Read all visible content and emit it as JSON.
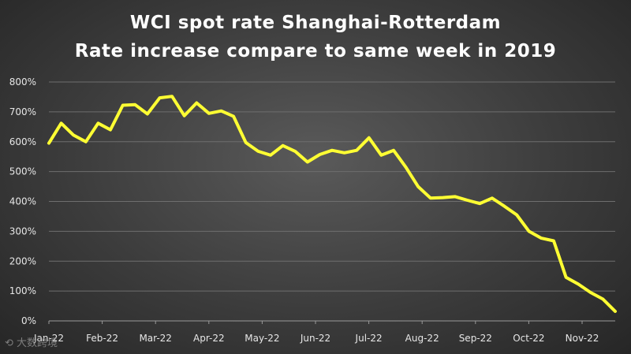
{
  "chart_data": {
    "type": "line",
    "title": "WCI spot rate Shanghai-Rotterdam",
    "subtitle": "Rate increase compare to same week in 2019",
    "xlabel": "",
    "ylabel": "",
    "ylim": [
      0,
      800
    ],
    "y_ticks": [
      "0%",
      "100%",
      "200%",
      "300%",
      "400%",
      "500%",
      "600%",
      "700%",
      "800%"
    ],
    "x_tick_labels": [
      "Jan-22",
      "Feb-22",
      "Mar-22",
      "Apr-22",
      "May-22",
      "Jun-22",
      "Jul-22",
      "Aug-22",
      "Sep-22",
      "Oct-22",
      "Nov-22"
    ],
    "grid": true,
    "line_color": "#ffff33",
    "series": [
      {
        "values": [
          595,
          662,
          622,
          600,
          662,
          640,
          722,
          724,
          693,
          747,
          752,
          687,
          730,
          695,
          703,
          685,
          597,
          568,
          555,
          587,
          568,
          532,
          557,
          571,
          563,
          571,
          613,
          555,
          571,
          514,
          449,
          411,
          413,
          416,
          404,
          393,
          411,
          384,
          355,
          300,
          277,
          268,
          146,
          123,
          95,
          73,
          32
        ]
      }
    ]
  },
  "watermark": "大数跨境"
}
